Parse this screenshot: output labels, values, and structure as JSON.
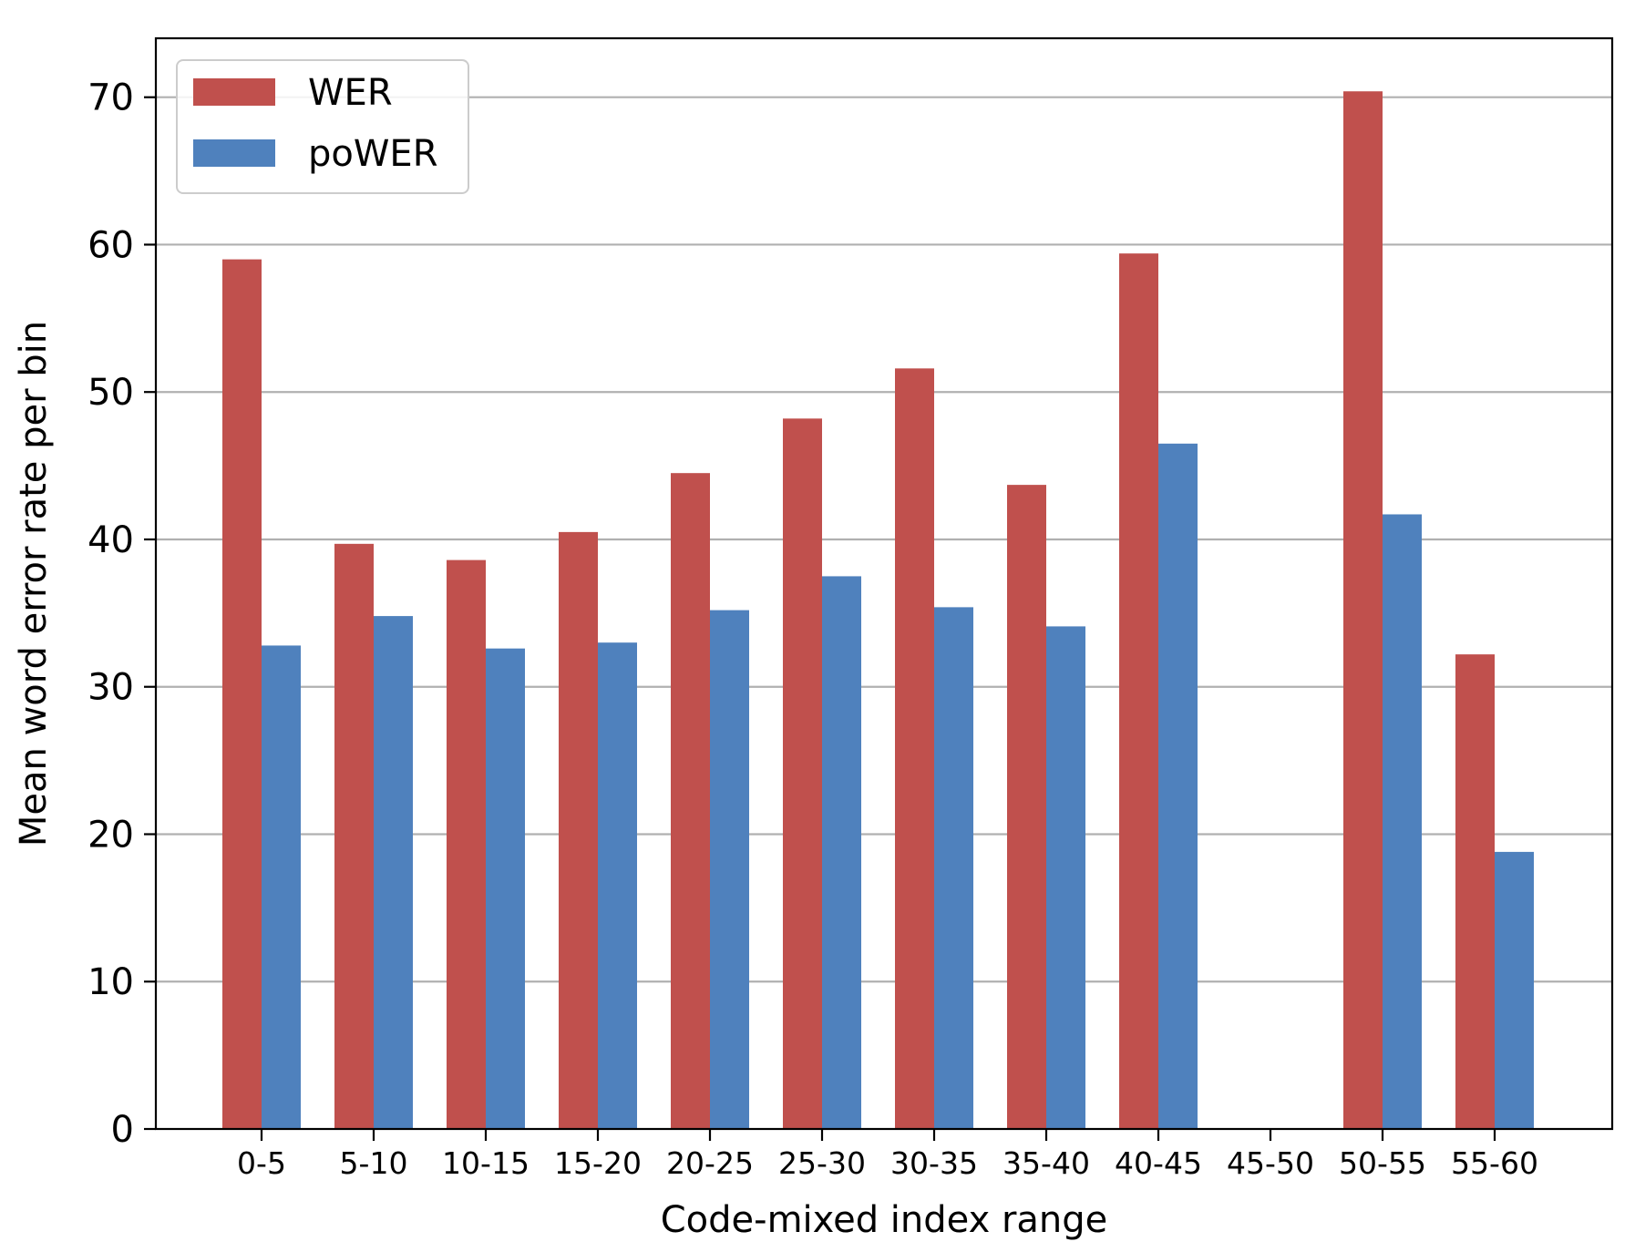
{
  "chart_data": {
    "type": "bar",
    "title": "",
    "xlabel": "Code-mixed index range",
    "ylabel": "Mean word error rate per bin",
    "ylim": [
      0,
      74
    ],
    "yticks": [
      0,
      10,
      20,
      30,
      40,
      50,
      60,
      70
    ],
    "categories": [
      "0-5",
      "5-10",
      "10-15",
      "15-20",
      "20-25",
      "25-30",
      "30-35",
      "35-40",
      "40-45",
      "45-50",
      "50-55",
      "55-60"
    ],
    "series": [
      {
        "name": "WER",
        "color": "#c0504d",
        "values": [
          59.0,
          39.7,
          38.6,
          40.5,
          44.5,
          48.2,
          51.6,
          43.7,
          59.4,
          null,
          70.4,
          32.2
        ]
      },
      {
        "name": "poWER",
        "color": "#4f81bd",
        "values": [
          32.8,
          34.8,
          32.6,
          33.0,
          35.2,
          37.5,
          35.4,
          34.1,
          46.5,
          null,
          41.7,
          18.8
        ]
      }
    ],
    "grid": "horizontal",
    "legend_position": "top-left"
  }
}
